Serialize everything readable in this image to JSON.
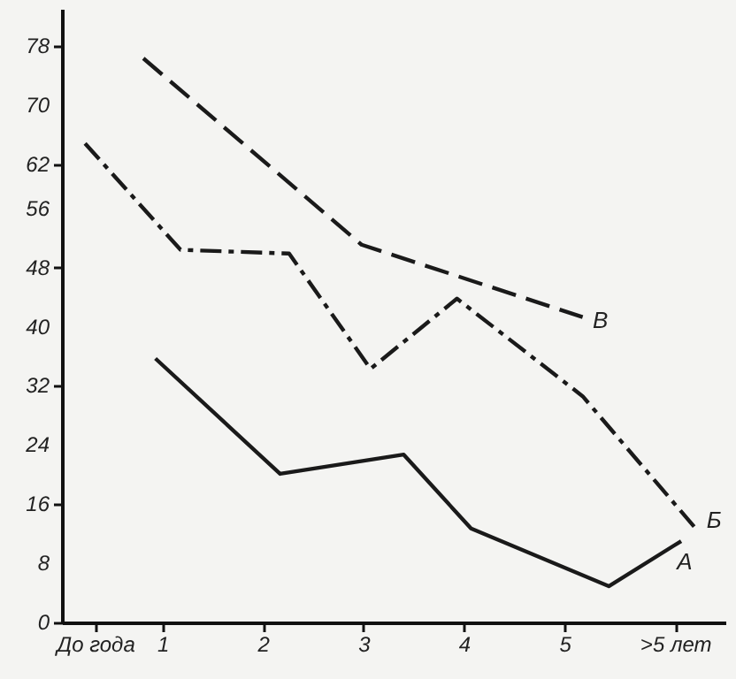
{
  "chart_data": {
    "type": "line",
    "xlim": [
      0,
      6.6
    ],
    "ylim": [
      0,
      83
    ],
    "xticks": [
      {
        "value": 0.33,
        "label": "До года"
      },
      1,
      2,
      3,
      4,
      5,
      {
        "value": 6.1,
        "label": ">5 лет"
      }
    ],
    "yticks": [
      0,
      8,
      16,
      24,
      32,
      40,
      48,
      56,
      62,
      70,
      78
    ],
    "series": [
      {
        "name": "А",
        "color": "#1a1a1a",
        "line_style": "solid",
        "x": [
          0.93,
          2.17,
          3.4,
          4.07,
          5.44,
          6.16
        ],
        "values": [
          35.7,
          20.1,
          22.7,
          12.7,
          4.9,
          11
        ]
      },
      {
        "name": "Б",
        "color": "#1a1a1a",
        "line_style": "dashdot",
        "x": [
          0.23,
          1.18,
          2.26,
          3.07,
          3.93,
          5.18,
          6.33
        ],
        "values": [
          64.8,
          50.4,
          49.9,
          34.3,
          43.8,
          30.6,
          12.3
        ]
      },
      {
        "name": "В",
        "color": "#1a1a1a",
        "line_style": "dashed",
        "x": [
          0.81,
          2.98,
          5.18
        ],
        "values": [
          76.3,
          51.1,
          41.3
        ]
      }
    ],
    "marker": "none",
    "grid": false
  }
}
